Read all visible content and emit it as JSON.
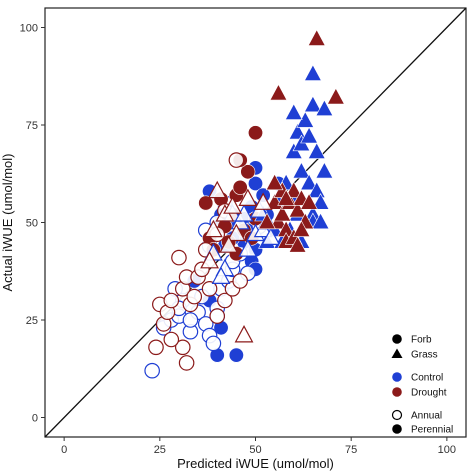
{
  "chart_data": {
    "type": "scatter",
    "xlabel": "Predicted iWUE (umol/mol)",
    "ylabel": "Actual iWUE (umol/mol)",
    "xlim": [
      -5,
      105
    ],
    "ylim": [
      -5,
      105
    ],
    "x_ticks": [
      0,
      25,
      50,
      75,
      100
    ],
    "y_ticks": [
      0,
      25,
      50,
      75,
      100
    ],
    "grid": false,
    "reference_line": "1:1 line",
    "legend_position": "bottom-right",
    "legend": {
      "growth_form": [
        {
          "label": "Forb",
          "marker": "circle"
        },
        {
          "label": "Grass",
          "marker": "triangle"
        }
      ],
      "treatment": [
        {
          "label": "Control",
          "color": "#1f3fd4"
        },
        {
          "label": "Drought",
          "color": "#8b1a1a"
        }
      ],
      "life_history": [
        {
          "label": "Annual",
          "fill": "open"
        },
        {
          "label": "Perennial",
          "fill": "filled"
        }
      ]
    },
    "colors": {
      "control": "#1f3fd4",
      "drought": "#8b1a1a"
    },
    "series": [
      {
        "form": "forb",
        "treatment": "control",
        "life": "perennial",
        "points": [
          [
            38,
            58
          ],
          [
            41,
            52
          ],
          [
            43,
            50
          ],
          [
            47,
            51
          ],
          [
            49,
            54
          ],
          [
            50,
            60
          ],
          [
            50,
            64
          ],
          [
            52,
            57
          ],
          [
            53,
            52
          ],
          [
            45,
            57
          ],
          [
            47,
            45
          ],
          [
            40,
            49
          ],
          [
            44,
            46
          ],
          [
            50,
            43
          ],
          [
            49,
            40
          ],
          [
            50,
            38
          ],
          [
            38,
            30
          ],
          [
            41,
            23
          ],
          [
            40,
            16
          ],
          [
            45,
            16
          ],
          [
            34,
            35
          ],
          [
            56,
            60
          ],
          [
            48,
            48
          ],
          [
            42,
            44
          ]
        ]
      },
      {
        "form": "forb",
        "treatment": "control",
        "life": "annual",
        "points": [
          [
            23,
            12
          ],
          [
            26,
            23
          ],
          [
            28,
            25
          ],
          [
            30,
            26
          ],
          [
            31,
            30
          ],
          [
            33,
            22
          ],
          [
            35,
            27
          ],
          [
            36,
            31
          ],
          [
            37,
            24
          ],
          [
            38,
            21
          ],
          [
            39,
            19
          ],
          [
            40,
            28
          ],
          [
            41,
            33
          ],
          [
            43,
            35
          ],
          [
            44,
            38
          ],
          [
            38,
            44
          ],
          [
            37,
            48
          ],
          [
            40,
            50
          ],
          [
            42,
            55
          ],
          [
            44,
            40
          ],
          [
            46,
            42
          ],
          [
            48,
            37
          ],
          [
            51,
            49
          ],
          [
            33,
            25
          ],
          [
            30,
            28
          ],
          [
            40,
            26
          ],
          [
            29,
            33
          ]
        ]
      },
      {
        "form": "forb",
        "treatment": "drought",
        "life": "perennial",
        "points": [
          [
            37,
            55
          ],
          [
            38,
            46
          ],
          [
            39,
            43
          ],
          [
            42,
            49
          ],
          [
            44,
            52
          ],
          [
            45,
            57
          ],
          [
            46,
            59
          ],
          [
            48,
            63
          ],
          [
            50,
            73
          ],
          [
            50,
            51
          ],
          [
            47,
            48
          ],
          [
            43,
            45
          ],
          [
            46,
            66
          ],
          [
            41,
            56
          ],
          [
            45,
            42
          ],
          [
            49,
            46
          ]
        ]
      },
      {
        "form": "forb",
        "treatment": "drought",
        "life": "annual",
        "points": [
          [
            25,
            29
          ],
          [
            26,
            24
          ],
          [
            27,
            27
          ],
          [
            28,
            30
          ],
          [
            30,
            41
          ],
          [
            31,
            33
          ],
          [
            32,
            36
          ],
          [
            33,
            29
          ],
          [
            34,
            31
          ],
          [
            35,
            36
          ],
          [
            36,
            38
          ],
          [
            38,
            33
          ],
          [
            40,
            26
          ],
          [
            42,
            30
          ],
          [
            44,
            33
          ],
          [
            46,
            35
          ],
          [
            31,
            18
          ],
          [
            32,
            14
          ],
          [
            24,
            18
          ],
          [
            37,
            43
          ],
          [
            40,
            47
          ],
          [
            45,
            66
          ],
          [
            42,
            53
          ],
          [
            28,
            20
          ]
        ]
      },
      {
        "form": "grass",
        "treatment": "control",
        "life": "perennial",
        "points": [
          [
            60,
            68
          ],
          [
            61,
            73
          ],
          [
            62,
            70
          ],
          [
            63,
            76
          ],
          [
            64,
            72
          ],
          [
            65,
            80
          ],
          [
            62,
            63
          ],
          [
            64,
            60
          ],
          [
            66,
            58
          ],
          [
            67,
            55
          ],
          [
            68,
            63
          ],
          [
            65,
            52
          ],
          [
            63,
            50
          ],
          [
            60,
            56
          ],
          [
            61,
            52
          ],
          [
            58,
            60
          ],
          [
            66,
            68
          ],
          [
            59,
            48
          ],
          [
            62,
            45
          ],
          [
            65,
            50
          ],
          [
            67,
            50
          ],
          [
            55,
            48
          ],
          [
            53,
            45
          ],
          [
            56,
            55
          ],
          [
            52,
            52
          ],
          [
            57,
            45
          ],
          [
            65,
            88
          ],
          [
            68,
            79
          ],
          [
            60,
            78
          ]
        ]
      },
      {
        "form": "grass",
        "treatment": "control",
        "life": "annual",
        "points": [
          [
            48,
            43
          ],
          [
            50,
            47
          ],
          [
            52,
            48
          ],
          [
            53,
            50
          ],
          [
            54,
            46
          ],
          [
            46,
            50
          ],
          [
            44,
            52
          ],
          [
            42,
            38
          ],
          [
            39,
            42
          ],
          [
            41,
            36
          ],
          [
            47,
            52
          ],
          [
            51,
            53
          ]
        ]
      },
      {
        "form": "grass",
        "treatment": "drought",
        "life": "perennial",
        "points": [
          [
            55,
            55
          ],
          [
            56,
            50
          ],
          [
            57,
            52
          ],
          [
            58,
            48
          ],
          [
            59,
            55
          ],
          [
            60,
            58
          ],
          [
            61,
            53
          ],
          [
            62,
            56
          ],
          [
            63,
            50
          ],
          [
            58,
            45
          ],
          [
            60,
            46
          ],
          [
            57,
            58
          ],
          [
            56,
            83
          ],
          [
            66,
            97
          ],
          [
            71,
            82
          ],
          [
            58,
            56
          ],
          [
            53,
            50
          ],
          [
            62,
            48
          ],
          [
            64,
            55
          ],
          [
            55,
            60
          ],
          [
            61,
            44
          ]
        ]
      },
      {
        "form": "grass",
        "treatment": "drought",
        "life": "annual",
        "points": [
          [
            40,
            58
          ],
          [
            42,
            52
          ],
          [
            44,
            54
          ],
          [
            47,
            21
          ],
          [
            48,
            56
          ],
          [
            38,
            40
          ],
          [
            52,
            55
          ],
          [
            45,
            47
          ],
          [
            43,
            44
          ],
          [
            39,
            48
          ]
        ]
      }
    ]
  }
}
